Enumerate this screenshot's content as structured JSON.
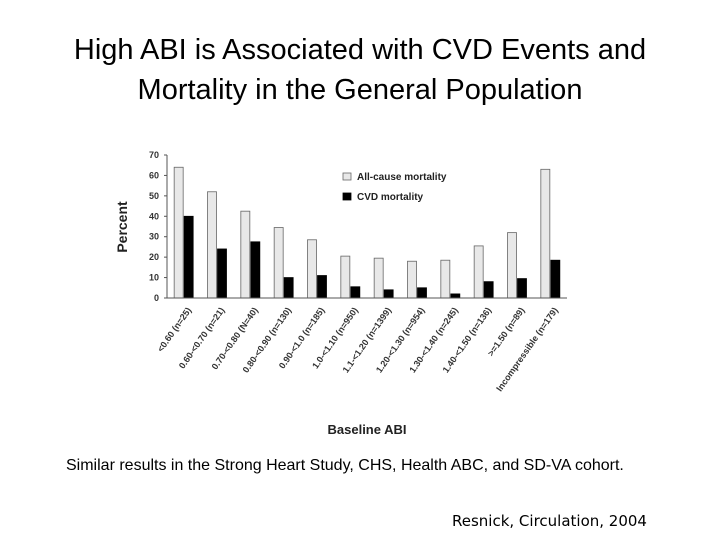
{
  "slide": {
    "title_line1": "High ABI is Associated with CVD Events and",
    "title_line2": "Mortality in the General Population",
    "note": "Similar results in the Strong Heart Study, CHS, Health ABC, and SD-VA cohort.",
    "citation": "Resnick, Circulation, 2004"
  },
  "chart_data": {
    "type": "bar",
    "categories": [
      "<0.60 (n=25)",
      "0.60-<0.70 (n=21)",
      "0.70-<0.80 (N=40)",
      "0.80-<0.90 (n=130)",
      "0.90-<1.0 (n=185)",
      "1.0-<1.10 (n=950)",
      "1.1-<1.20 (n=1399)",
      "1.20-<1.30 (n=954)",
      "1.30-<1.40 (n=245)",
      "1.40-<1.50 (n=136)",
      ">=1.50 (n=89)",
      "Incompressible (n=179)"
    ],
    "series": [
      {
        "name": "All-cause mortality",
        "values": [
          64,
          52,
          42.5,
          34.5,
          28.5,
          20.5,
          19.5,
          18,
          18.5,
          25.5,
          32,
          63
        ],
        "color": "#e8e8e8"
      },
      {
        "name": "CVD mortality",
        "values": [
          40,
          24,
          27.5,
          10,
          11,
          5.5,
          4,
          5,
          2,
          8,
          9.5,
          18.5
        ],
        "color": "#000000"
      }
    ],
    "xlabel": "Baseline ABI",
    "ylabel": "Percent",
    "ylim": [
      0,
      70
    ],
    "yticks": [
      0,
      10,
      20,
      30,
      40,
      50,
      60,
      70
    ],
    "grid": false,
    "legend_position": "top-right"
  }
}
